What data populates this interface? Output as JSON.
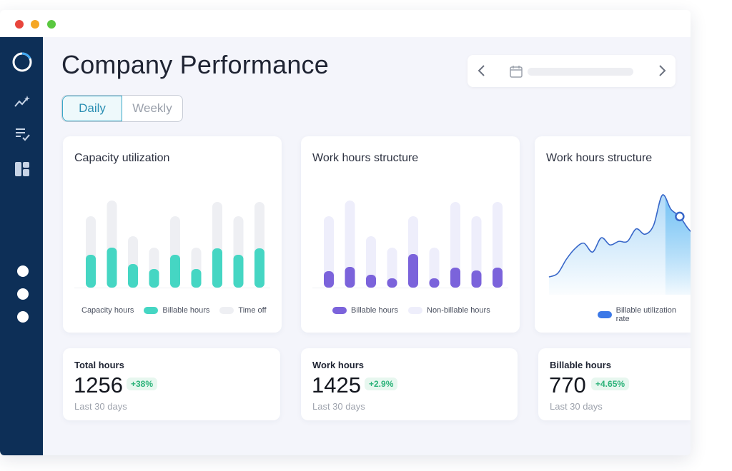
{
  "window": {
    "traffic_lights": {
      "close": "#e8453c",
      "minimize": "#f5a623",
      "maximize": "#5ac840"
    }
  },
  "sidebar": {
    "bg_color": "#0d2f57",
    "icons": [
      "logo-ring-icon",
      "analytics-icon",
      "checklist-icon",
      "dashboard-icon"
    ]
  },
  "header": {
    "title": "Company Performance",
    "tabs": [
      {
        "label": "Daily",
        "active": true
      },
      {
        "label": "Weekly",
        "active": false
      }
    ]
  },
  "cards": {
    "capacity": {
      "title": "Capacity utilization",
      "legend": [
        "Capacity hours",
        "Billable hours",
        "Time off"
      ]
    },
    "work_structure": {
      "title": "Work hours structure",
      "legend": [
        "Billable hours",
        "Non-billable hours"
      ]
    },
    "utilization": {
      "title": "Work hours structure",
      "legend": [
        "Billable utilization rate"
      ]
    }
  },
  "stats": [
    {
      "label": "Total hours",
      "value": "1256",
      "change": "+38%",
      "period": "Last 30 days"
    },
    {
      "label": "Work hours",
      "value": "1425",
      "change": "+2.9%",
      "period": "Last 30 days"
    },
    {
      "label": "Billable hours",
      "value": "770",
      "change": "+4.65%",
      "period": "Last 30 days"
    }
  ],
  "colors": {
    "teal": "#45d6c3",
    "purple": "#7b63db",
    "track": "#eeeff3",
    "lavender": "#eeeefb",
    "line": "#3867c9",
    "area": "#a8d6f7",
    "highlight": "#56b7f3"
  },
  "chart_data": [
    {
      "type": "bar",
      "title": "Capacity utilization",
      "series": [
        {
          "name": "Capacity hours",
          "values": [
            100,
            122,
            72,
            56,
            100,
            56,
            120,
            100,
            120
          ]
        },
        {
          "name": "Billable hours",
          "values": [
            46,
            56,
            33,
            26,
            46,
            26,
            55,
            46,
            55
          ]
        }
      ]
    },
    {
      "type": "bar",
      "title": "Work hours structure",
      "series": [
        {
          "name": "Non-billable hours",
          "values": [
            100,
            122,
            72,
            56,
            100,
            56,
            120,
            100,
            120
          ]
        },
        {
          "name": "Billable hours",
          "values": [
            23,
            29,
            18,
            13,
            47,
            13,
            28,
            24,
            28
          ]
        }
      ]
    },
    {
      "type": "area",
      "title": "Work hours structure",
      "series": [
        {
          "name": "Billable utilization rate",
          "values": [
            20,
            24,
            40,
            52,
            58,
            48,
            64,
            56,
            60,
            60,
            74,
            68,
            78,
            112,
            96,
            88,
            74,
            66,
            70,
            60,
            62,
            66
          ]
        }
      ],
      "ylim": [
        0,
        130
      ],
      "highlight_index": 15
    }
  ]
}
